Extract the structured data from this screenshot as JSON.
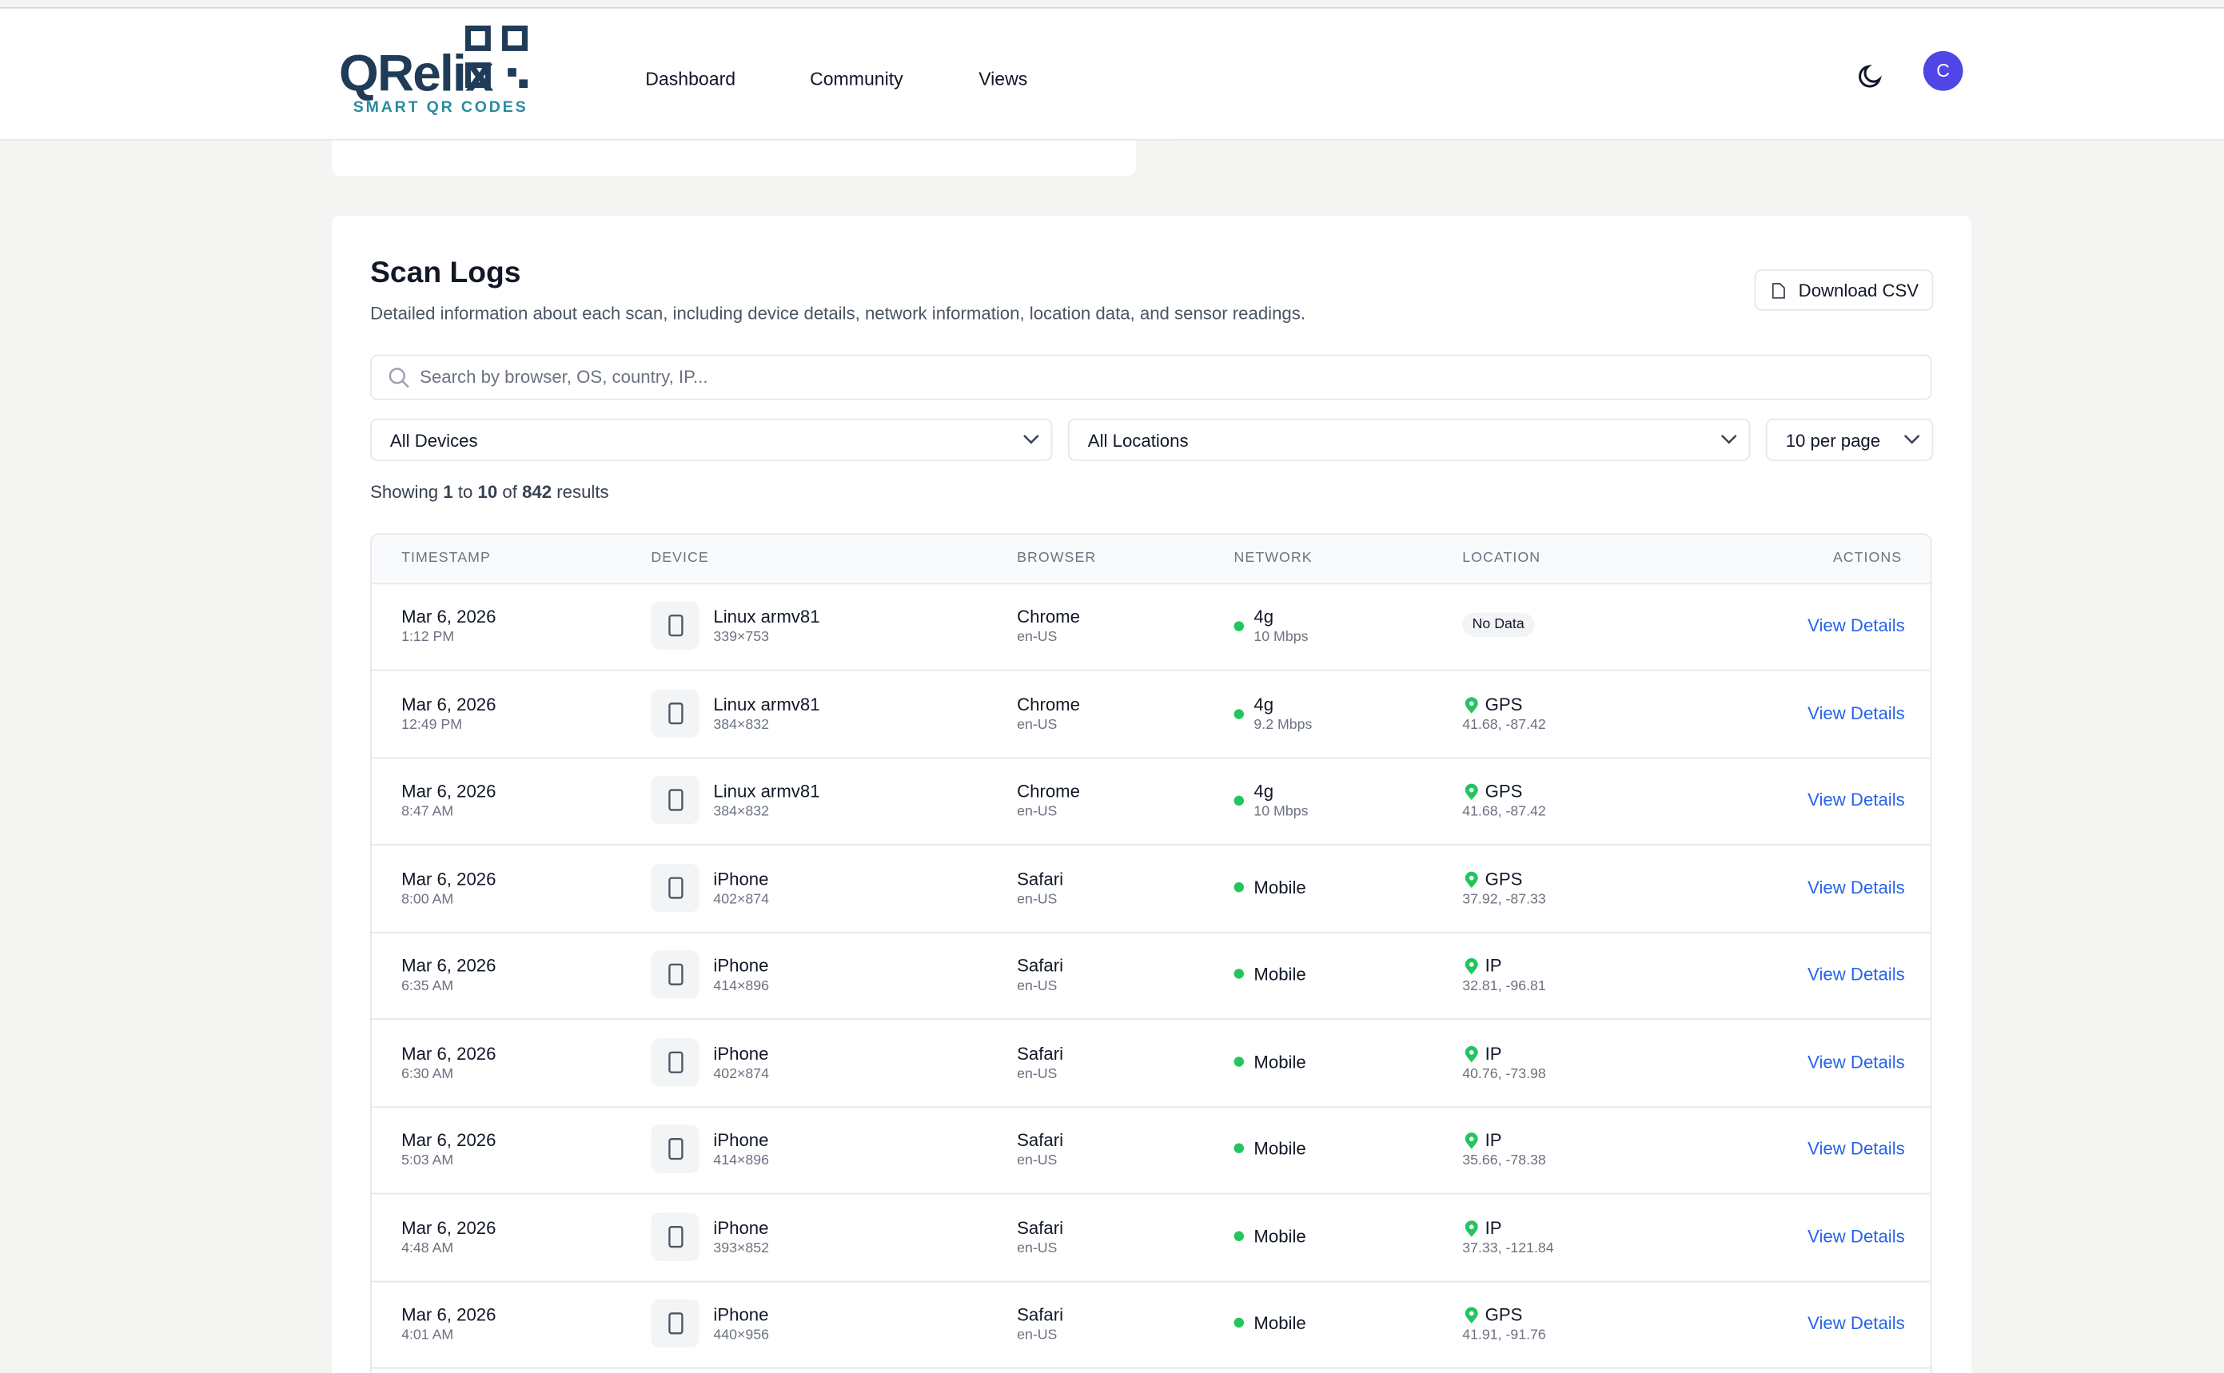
{
  "header": {
    "logo": "QRelix",
    "tagline": "SMART QR CODES",
    "nav": [
      "Dashboard",
      "Community",
      "Views"
    ],
    "avatar": "C"
  },
  "scan_logs": {
    "title": "Scan Logs",
    "description": "Detailed information about each scan, including device details, network information, location data, and sensor readings.",
    "download_button": "Download CSV",
    "search_placeholder": "Search by browser, OS, country, IP...",
    "filters": [
      "All Devices",
      "All Locations",
      "10 per page"
    ],
    "showing": {
      "prefix": "Showing",
      "from": "1",
      "to_word": "to",
      "to": "10",
      "of_word": "of",
      "total": "842",
      "suffix": "results"
    },
    "columns": [
      "TIMESTAMP",
      "DEVICE",
      "BROWSER",
      "NETWORK",
      "LOCATION",
      "ACTIONS"
    ],
    "rows": [
      {
        "date": "Mar 6, 2026",
        "time": "1:12 PM",
        "device": "Linux armv81",
        "resolution": "339×753",
        "browser": "Chrome",
        "language": "en-US",
        "network": "4g",
        "speed": "10 Mbps",
        "location_badge": "No Data",
        "action": "View Details"
      },
      {
        "date": "Mar 6, 2026",
        "time": "12:49 PM",
        "device": "Linux armv81",
        "resolution": "384×832",
        "browser": "Chrome",
        "language": "en-US",
        "network": "4g",
        "speed": "9.2 Mbps",
        "location_source": "GPS",
        "coordinates": "41.68, -87.42",
        "action": "View Details"
      },
      {
        "date": "Mar 6, 2026",
        "time": "8:47 AM",
        "device": "Linux armv81",
        "resolution": "384×832",
        "browser": "Chrome",
        "language": "en-US",
        "network": "4g",
        "speed": "10 Mbps",
        "location_source": "GPS",
        "coordinates": "41.68, -87.42",
        "action": "View Details"
      },
      {
        "date": "Mar 6, 2026",
        "time": "8:00 AM",
        "device": "iPhone",
        "resolution": "402×874",
        "browser": "Safari",
        "language": "en-US",
        "network": "Mobile",
        "location_source": "GPS",
        "coordinates": "37.92, -87.33",
        "action": "View Details"
      },
      {
        "date": "Mar 6, 2026",
        "time": "6:35 AM",
        "device": "iPhone",
        "resolution": "414×896",
        "browser": "Safari",
        "language": "en-US",
        "network": "Mobile",
        "location_source": "IP",
        "coordinates": "32.81, -96.81",
        "action": "View Details"
      },
      {
        "date": "Mar 6, 2026",
        "time": "6:30 AM",
        "device": "iPhone",
        "resolution": "402×874",
        "browser": "Safari",
        "language": "en-US",
        "network": "Mobile",
        "location_source": "IP",
        "coordinates": "40.76, -73.98",
        "action": "View Details"
      },
      {
        "date": "Mar 6, 2026",
        "time": "5:03 AM",
        "device": "iPhone",
        "resolution": "414×896",
        "browser": "Safari",
        "language": "en-US",
        "network": "Mobile",
        "location_source": "IP",
        "coordinates": "35.66, -78.38",
        "action": "View Details"
      },
      {
        "date": "Mar 6, 2026",
        "time": "4:48 AM",
        "device": "iPhone",
        "resolution": "393×852",
        "browser": "Safari",
        "language": "en-US",
        "network": "Mobile",
        "location_source": "IP",
        "coordinates": "37.33, -121.84",
        "action": "View Details"
      },
      {
        "date": "Mar 6, 2026",
        "time": "4:01 AM",
        "device": "iPhone",
        "resolution": "440×956",
        "browser": "Safari",
        "language": "en-US",
        "network": "Mobile",
        "location_source": "GPS",
        "coordinates": "41.91, -91.76",
        "action": "View Details"
      }
    ]
  }
}
